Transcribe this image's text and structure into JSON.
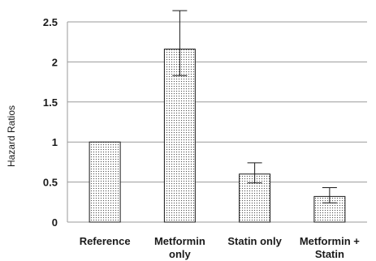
{
  "chart_data": {
    "type": "bar",
    "categories": [
      [
        "Reference"
      ],
      [
        "Metformin",
        "only"
      ],
      [
        "Statin only"
      ],
      [
        "Metformin +",
        "Statin"
      ]
    ],
    "series": [
      {
        "values": [
          1.0,
          2.16,
          0.6,
          0.32
        ],
        "error_low": [
          null,
          1.83,
          0.49,
          0.24
        ],
        "error_high": [
          null,
          2.64,
          0.74,
          0.43
        ]
      }
    ],
    "title": "",
    "xlabel": "",
    "ylabel": "Hazard Ratios",
    "ylim": [
      0,
      2.5
    ],
    "yticks": [
      "0",
      "0.5",
      "1",
      "1.5",
      "2",
      "2.5"
    ],
    "ytick_values": [
      0,
      0.5,
      1,
      1.5,
      2,
      2.5
    ],
    "grid": "horizontal",
    "legend": "none",
    "bar_fill": "#ffffff",
    "bar_dot_color": "#555555",
    "bar_edge_color": "#1a1a1a",
    "grid_color": "#9a9a9a"
  }
}
